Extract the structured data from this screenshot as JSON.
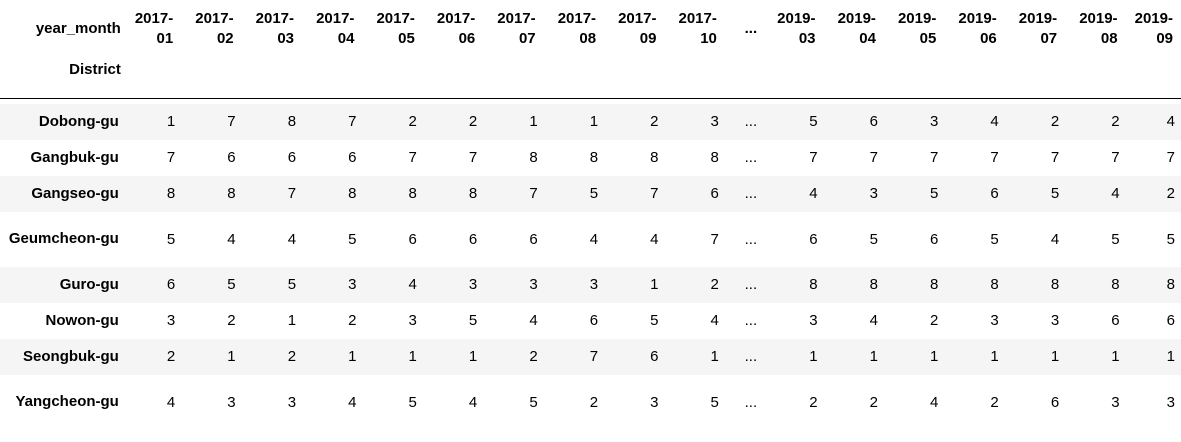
{
  "table": {
    "columns_axis_name": "year_month",
    "index_name": "District",
    "ellipsis": "...",
    "columns": [
      "2017-01",
      "2017-02",
      "2017-03",
      "2017-04",
      "2017-05",
      "2017-06",
      "2017-07",
      "2017-08",
      "2017-09",
      "2017-10",
      "...",
      "2019-03",
      "2019-04",
      "2019-05",
      "2019-06",
      "2019-07",
      "2019-08",
      "2019-09"
    ],
    "rows": [
      {
        "district": "Dobong-gu",
        "values": [
          "1",
          "7",
          "8",
          "7",
          "2",
          "2",
          "1",
          "1",
          "2",
          "3",
          "...",
          "5",
          "6",
          "3",
          "4",
          "2",
          "2",
          "4"
        ]
      },
      {
        "district": "Gangbuk-gu",
        "values": [
          "7",
          "6",
          "6",
          "6",
          "7",
          "7",
          "8",
          "8",
          "8",
          "8",
          "...",
          "7",
          "7",
          "7",
          "7",
          "7",
          "7",
          "7"
        ]
      },
      {
        "district": "Gangseo-gu",
        "values": [
          "8",
          "8",
          "7",
          "8",
          "8",
          "8",
          "7",
          "5",
          "7",
          "6",
          "...",
          "4",
          "3",
          "5",
          "6",
          "5",
          "4",
          "2"
        ]
      },
      {
        "district": "Geumcheon-gu",
        "values": [
          "5",
          "4",
          "4",
          "5",
          "6",
          "6",
          "6",
          "4",
          "4",
          "7",
          "...",
          "6",
          "5",
          "6",
          "5",
          "4",
          "5",
          "5"
        ]
      },
      {
        "district": "Guro-gu",
        "values": [
          "6",
          "5",
          "5",
          "3",
          "4",
          "3",
          "3",
          "3",
          "1",
          "2",
          "...",
          "8",
          "8",
          "8",
          "8",
          "8",
          "8",
          "8"
        ]
      },
      {
        "district": "Nowon-gu",
        "values": [
          "3",
          "2",
          "1",
          "2",
          "3",
          "5",
          "4",
          "6",
          "5",
          "4",
          "...",
          "3",
          "4",
          "2",
          "3",
          "3",
          "6",
          "6"
        ]
      },
      {
        "district": "Seongbuk-gu",
        "values": [
          "2",
          "1",
          "2",
          "1",
          "1",
          "1",
          "2",
          "7",
          "6",
          "1",
          "...",
          "1",
          "1",
          "1",
          "1",
          "1",
          "1",
          "1"
        ]
      },
      {
        "district": "Yangcheon-gu",
        "values": [
          "4",
          "3",
          "3",
          "4",
          "5",
          "4",
          "5",
          "2",
          "3",
          "5",
          "...",
          "2",
          "2",
          "4",
          "2",
          "6",
          "3",
          "3"
        ]
      }
    ]
  }
}
